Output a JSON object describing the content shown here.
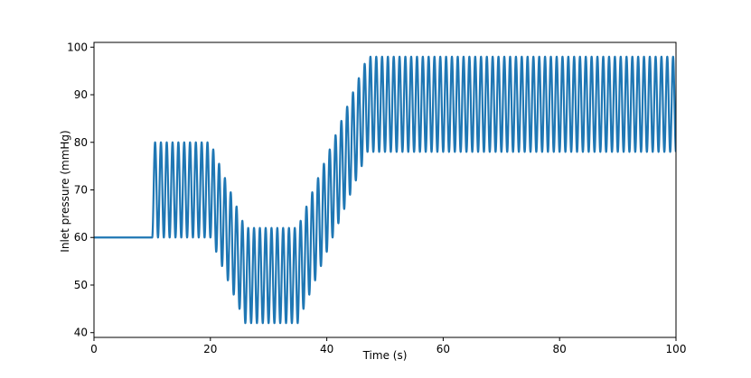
{
  "chart_data": {
    "type": "line",
    "title": "",
    "xlabel": "Time (s)",
    "ylabel": "Inlet pressure (mmHg)",
    "xlim": [
      0,
      100
    ],
    "ylim": [
      39,
      101
    ],
    "xticks": [
      0,
      20,
      40,
      60,
      80,
      100
    ],
    "yticks": [
      40,
      50,
      60,
      70,
      80,
      90,
      100
    ],
    "grid": false,
    "series_color": "#1f77b4",
    "period_s": 1,
    "segments": [
      {
        "t_start": 0,
        "t_end": 10,
        "shape": "constant",
        "value": 60
      },
      {
        "t_start": 10,
        "t_end": 20,
        "shape": "oscillation",
        "min_start": 60,
        "max_start": 80,
        "min_end": 60,
        "max_end": 80
      },
      {
        "t_start": 20,
        "t_end": 26,
        "shape": "oscillation",
        "min_start": 60,
        "max_start": 80,
        "min_end": 42,
        "max_end": 62
      },
      {
        "t_start": 26,
        "t_end": 35,
        "shape": "oscillation",
        "min_start": 42,
        "max_start": 62,
        "min_end": 42,
        "max_end": 62
      },
      {
        "t_start": 35,
        "t_end": 47,
        "shape": "oscillation",
        "min_start": 42,
        "max_start": 62,
        "min_end": 78,
        "max_end": 98
      },
      {
        "t_start": 47,
        "t_end": 100,
        "shape": "oscillation",
        "min_start": 78,
        "max_start": 98,
        "min_end": 78,
        "max_end": 98
      }
    ]
  }
}
